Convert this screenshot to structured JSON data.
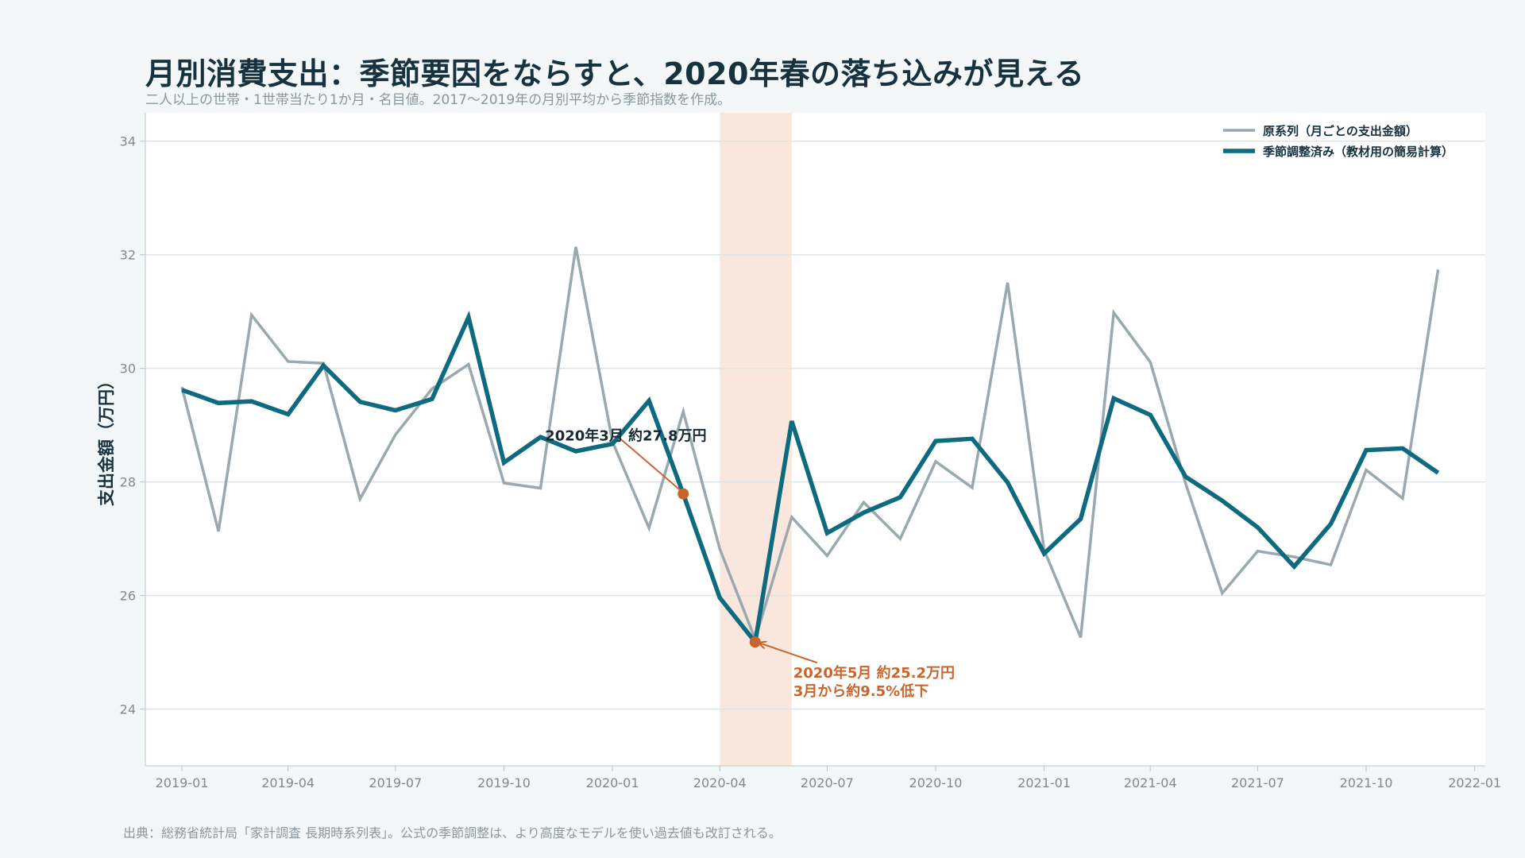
{
  "chart_data": {
    "type": "line",
    "title": "月別消費支出：季節要因をならすと、2020年春の落ち込みが見える",
    "subtitle": "二人以上の世帯・1世帯当たり1か月・名目値。2017〜2019年の月別平均から季節指数を作成。",
    "source": "出典：総務省統計局「家計調査 長期時系列表」。公式の季節調整は、より高度なモデルを使い過去値も改訂される。",
    "xlabel": "",
    "ylabel": "支出金額（万円）",
    "ylim": [
      23,
      34.5
    ],
    "yticks": [
      24,
      26,
      28,
      30,
      32,
      34
    ],
    "xlim": [
      "2018-12-01",
      "2022-01-10"
    ],
    "xticks": [
      "2019-01",
      "2019-04",
      "2019-07",
      "2019-10",
      "2020-01",
      "2020-04",
      "2020-07",
      "2020-10",
      "2021-01",
      "2021-04",
      "2021-07",
      "2021-10",
      "2022-01"
    ],
    "grid": "horizontal",
    "legend_position": "top-right",
    "x": [
      "2019-01",
      "2019-02",
      "2019-03",
      "2019-04",
      "2019-05",
      "2019-06",
      "2019-07",
      "2019-08",
      "2019-09",
      "2019-10",
      "2019-11",
      "2019-12",
      "2020-01",
      "2020-02",
      "2020-03",
      "2020-04",
      "2020-05",
      "2020-06",
      "2020-07",
      "2020-08",
      "2020-09",
      "2020-10",
      "2020-11",
      "2020-12",
      "2021-01",
      "2021-02",
      "2021-03",
      "2021-04",
      "2021-05",
      "2021-06",
      "2021-07",
      "2021-08",
      "2021-09",
      "2021-10",
      "2021-11",
      "2021-12"
    ],
    "series": [
      {
        "name": "原系列（月ごとの支出金額）",
        "color": "#9aa9ae",
        "values": [
          29.67,
          27.13,
          30.94,
          30.12,
          30.09,
          27.7,
          28.83,
          29.64,
          30.07,
          27.98,
          27.89,
          32.14,
          28.71,
          27.19,
          29.24,
          26.82,
          25.23,
          27.38,
          26.7,
          27.64,
          27.0,
          28.36,
          27.9,
          31.51,
          26.8,
          25.26,
          30.98,
          30.11,
          27.97,
          26.04,
          26.78,
          26.68,
          26.54,
          28.21,
          27.71,
          31.74
        ]
      },
      {
        "name": "季節調整済み（教材用の簡易計算）",
        "color": "#0e6a7e",
        "values": [
          29.62,
          29.39,
          29.42,
          29.19,
          30.05,
          29.41,
          29.26,
          29.46,
          30.9,
          28.34,
          28.79,
          28.54,
          28.67,
          29.43,
          27.79,
          25.96,
          25.18,
          29.07,
          27.1,
          27.46,
          27.73,
          28.72,
          28.76,
          27.99,
          26.74,
          27.35,
          29.47,
          29.18,
          28.09,
          27.67,
          27.2,
          26.51,
          27.26,
          28.56,
          28.59,
          28.16
        ]
      }
    ],
    "shaded_period": {
      "start": "2020-04",
      "end": "2020-06",
      "color": "#f9e6dc"
    },
    "annotations": [
      {
        "x": "2020-03",
        "y": 27.79,
        "text": "2020年3月 約27.8万円",
        "color": "#1a2b33",
        "marker_color": "#c8652c"
      },
      {
        "x": "2020-05",
        "y": 25.18,
        "text": "2020年5月 約25.2万円",
        "text2": "3月から約9.5%低下",
        "color": "#c8652c",
        "marker_color": "#c8652c"
      }
    ]
  }
}
